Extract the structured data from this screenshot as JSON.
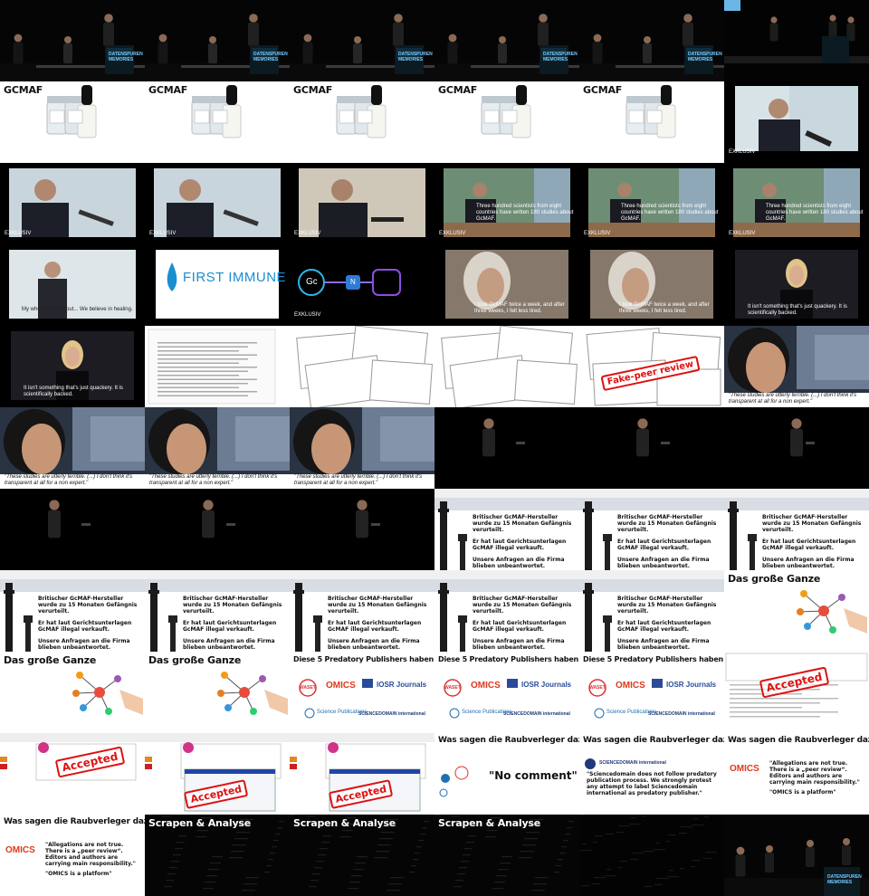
{
  "grid": {
    "cols": 6,
    "rows": 11
  },
  "texts": {
    "gcmaf": "GCMAF",
    "exklusiv": "EXKLUSIV",
    "subtitle_scientists": "Three hundred scientists from eight countries have written 180 studies about GcMAF.",
    "subtitle_week": "I took GcMAF twice a week, and after three weeks, I felt less tired.",
    "subtitle_quackery": "It isn't something that's just quackery. It is scientifically backed.",
    "subtitle_first": "My whole life is about... We believe in healing.",
    "first_immune": "FIRST IMMUNE",
    "gc": "Gc",
    "n": "N",
    "fake_peer_review": "Fake-peer review",
    "quote_terrible": "\"These studies are utterly terrible. (...) I don't think it's transparent at all for a non expert.\"",
    "bullet1": "Britischer GcMAF-Hersteller wurde zu 15 Monaten Gefängnis verurteilt.",
    "bullet2": "Er hat laut Gerichtsunterlagen GcMAF illegal verkauft.",
    "bullet3": "Unsere Anfragen an die Firma blieben unbeantwortet.",
    "das_grosse_ganze": "Das große Ganze",
    "predatory_title": "Diese 5 Predatory Publishers haben wir untersucht...",
    "accepted": "Accepted",
    "raubverleger": "Was sagen die Raubverleger dazu?",
    "no_comment": "\"No comment\"",
    "sciencedomain_quote": "\"Sciencedomain does not follow predatory publication process. We strongly protest any attempt to label Sciencedomain international as predatory publisher.\"",
    "omics_quote1": "\"Allegations are not true. There is a „peer review“. Editors and authors are carrying main responsibility.\"",
    "omics_quote2": "\"OMICS is a platform\"",
    "scrapen": "Scrapen & Analyse",
    "waset": "WASET",
    "omics": "OMICS",
    "group": "Group",
    "iosr": "IOSR Journals",
    "science_pub": "Science Publications",
    "sciencedomain": "SCIENCEDOMAIN international",
    "stage_logo": "DATENSPUREN MEMORIES"
  },
  "tiles": [
    "stage",
    "stage",
    "stage",
    "stage",
    "stage",
    "stage-wide",
    "gcmaf",
    "gcmaf",
    "gcmaf",
    "gcmaf",
    "gcmaf",
    "interview-a",
    "interview-b",
    "interview-b",
    "interview-c",
    "interview-d",
    "interview-d",
    "interview-d",
    "interview-first",
    "first-immune",
    "gc-diagram",
    "grandma",
    "grandma",
    "blonde",
    "blonde",
    "doc-single",
    "doc-multi",
    "doc-multi",
    "doc-fake",
    "woman-close",
    "woman-close",
    "woman-close",
    "woman-close",
    "dark-speaker",
    "dark-speaker",
    "dark-speaker",
    "dark-speaker",
    "dark-speaker",
    "dark-speaker",
    "bullets",
    "bullets",
    "bullets",
    "bullets",
    "bullets",
    "bullets",
    "bullets",
    "bullets",
    "grosse-ganze",
    "grosse-ganze",
    "grosse-ganze",
    "predatory",
    "predatory",
    "predatory",
    "accepted-1",
    "accepted-2",
    "accepted-3",
    "accepted-3",
    "raub-nocomment",
    "raub-sciencedomain",
    "raub-omics",
    "raub-omics",
    "scrapen",
    "scrapen",
    "scrapen",
    "scrapen-blank",
    "stage-end"
  ]
}
